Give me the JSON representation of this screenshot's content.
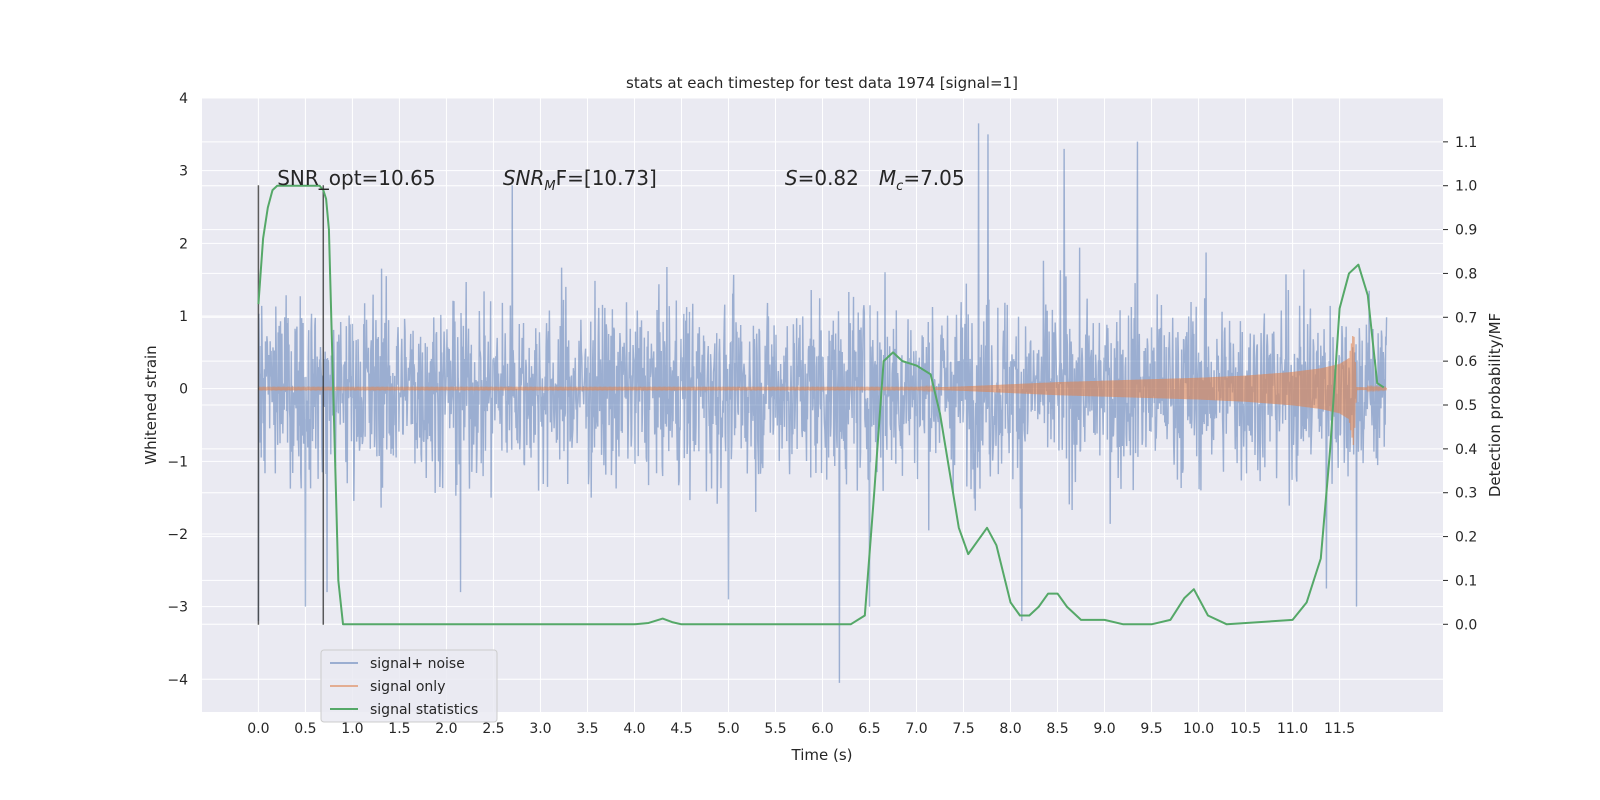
{
  "chart_data": {
    "type": "line",
    "title": "stats at each timestep for test data 1974 [signal=1]",
    "xlabel": "Time (s)",
    "ylabel": "Whitened strain",
    "y2label": "Detection probability/MF",
    "xlim": [
      -0.6,
      12.6
    ],
    "ylim": [
      -4.45,
      4.0
    ],
    "y2lim": [
      -0.2,
      1.2
    ],
    "x_ticks": [
      "0.0",
      "0.5",
      "1.0",
      "1.5",
      "2.0",
      "2.5",
      "3.0",
      "3.5",
      "4.0",
      "4.5",
      "5.0",
      "5.5",
      "6.0",
      "6.5",
      "7.0",
      "7.5",
      "8.0",
      "8.5",
      "9.0",
      "9.5",
      "10.0",
      "10.5",
      "11.0",
      "11.5"
    ],
    "y_ticks": [
      "−4",
      "−3",
      "−2",
      "−1",
      "0",
      "1",
      "2",
      "3",
      "4"
    ],
    "y2_ticks": [
      "0.0",
      "0.1",
      "0.2",
      "0.3",
      "0.4",
      "0.5",
      "0.6",
      "0.7",
      "0.8",
      "0.9",
      "1.0",
      "1.1"
    ],
    "grid": true,
    "legend_position": "lower-left",
    "annotations": [
      {
        "text": "SNR_opt=10.65",
        "x": 0.2,
        "y": 2.9
      },
      {
        "text": "SNR",
        "sub": "M",
        "tail": "F=[10.73]",
        "x": 2.6,
        "y": 2.9
      },
      {
        "text": "S",
        "tail": "=0.82",
        "x": 5.6,
        "y": 2.9
      },
      {
        "text": "M",
        "sub": "c",
        "tail": "=7.05",
        "x": 6.6,
        "y": 2.9
      }
    ],
    "vlines": [
      {
        "x": 0.0,
        "y": [
          -3.25,
          2.8
        ]
      },
      {
        "x": 0.69,
        "y": [
          -3.25,
          2.8
        ]
      }
    ],
    "series": [
      {
        "name": "signal+ noise",
        "color": "#4c72b0",
        "opacity": 0.5,
        "x_range": [
          0,
          12
        ],
        "envelope_p99": [
          1.6,
          1.6,
          1.7,
          1.6,
          1.6,
          1.6,
          1.6,
          1.6,
          1.6,
          1.6,
          1.6,
          1.6,
          1.6,
          1.6,
          1.6,
          1.6,
          1.6,
          1.6,
          1.6,
          1.6,
          1.6,
          1.6,
          1.6,
          1.6,
          1.6
        ],
        "spikes": [
          {
            "x": 0.0,
            "y": -3.2
          },
          {
            "x": 0.5,
            "y": -3.0
          },
          {
            "x": 0.73,
            "y": -2.8
          },
          {
            "x": 2.15,
            "y": -2.8
          },
          {
            "x": 2.7,
            "y": 2.8
          },
          {
            "x": 5.0,
            "y": -2.9
          },
          {
            "x": 6.18,
            "y": -4.05
          },
          {
            "x": 6.5,
            "y": -3.0
          },
          {
            "x": 7.66,
            "y": 3.65
          },
          {
            "x": 7.76,
            "y": 3.5
          },
          {
            "x": 8.12,
            "y": -3.2
          },
          {
            "x": 8.57,
            "y": 3.3
          },
          {
            "x": 9.35,
            "y": 3.4
          },
          {
            "x": 11.36,
            "y": -2.75
          },
          {
            "x": 11.68,
            "y": -3.0
          }
        ]
      },
      {
        "name": "signal only",
        "color": "#dd8452",
        "opacity": 0.6,
        "envelope": {
          "x": [
            0.0,
            7.0,
            7.5,
            8.0,
            8.5,
            9.0,
            9.5,
            10.0,
            10.5,
            11.0,
            11.3,
            11.5,
            11.6,
            11.65,
            11.68,
            12.0
          ],
          "amp": [
            0.01,
            0.01,
            0.03,
            0.06,
            0.09,
            0.11,
            0.13,
            0.15,
            0.18,
            0.23,
            0.28,
            0.34,
            0.42,
            0.8,
            0.02,
            0.01
          ]
        }
      },
      {
        "name": "signal statistics",
        "color": "#55a868",
        "axis": "right",
        "x": [
          0.0,
          0.05,
          0.1,
          0.15,
          0.2,
          0.3,
          0.4,
          0.5,
          0.6,
          0.65,
          0.69,
          0.72,
          0.75,
          0.8,
          0.85,
          0.9,
          1.0,
          2.0,
          3.0,
          4.0,
          4.15,
          4.3,
          4.4,
          4.5,
          5.0,
          5.5,
          6.0,
          6.3,
          6.45,
          6.55,
          6.65,
          6.75,
          6.85,
          7.0,
          7.15,
          7.25,
          7.35,
          7.45,
          7.55,
          7.65,
          7.75,
          7.85,
          8.0,
          8.1,
          8.2,
          8.3,
          8.4,
          8.5,
          8.6,
          8.75,
          9.0,
          9.2,
          9.5,
          9.7,
          9.85,
          9.95,
          10.1,
          10.3,
          11.0,
          11.15,
          11.3,
          11.4,
          11.5,
          11.6,
          11.7,
          11.8,
          11.9,
          11.97
        ],
        "y": [
          0.73,
          0.88,
          0.95,
          0.99,
          1.0,
          1.0,
          1.0,
          1.0,
          1.0,
          1.0,
          0.99,
          0.97,
          0.9,
          0.5,
          0.1,
          0.0,
          0.0,
          0.0,
          0.0,
          0.0,
          0.003,
          0.013,
          0.005,
          0.0,
          0.0,
          0.0,
          0.0,
          0.0,
          0.02,
          0.3,
          0.6,
          0.62,
          0.6,
          0.59,
          0.57,
          0.48,
          0.35,
          0.22,
          0.16,
          0.19,
          0.22,
          0.18,
          0.05,
          0.02,
          0.02,
          0.04,
          0.07,
          0.07,
          0.04,
          0.01,
          0.01,
          0.0,
          0.0,
          0.01,
          0.06,
          0.08,
          0.02,
          0.0,
          0.01,
          0.05,
          0.15,
          0.4,
          0.72,
          0.8,
          0.82,
          0.75,
          0.55,
          0.54
        ]
      }
    ]
  }
}
